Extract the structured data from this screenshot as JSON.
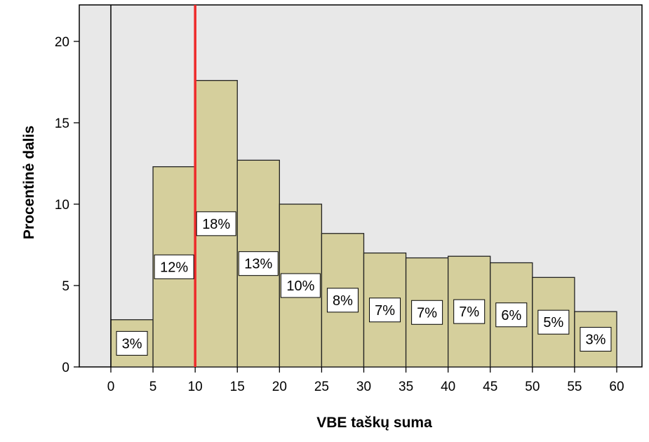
{
  "colors": {
    "plot_background": "#e8e8e8",
    "bar_fill": "#d5cf9c",
    "bar_stroke": "#222222",
    "reference_line": "#ee2b2b",
    "label_box": "#ffffff"
  },
  "chart_data": {
    "type": "bar",
    "title": "",
    "xlabel": "VBE taškų suma",
    "ylabel": "Procentinė dalis",
    "xlim": [
      0,
      60
    ],
    "ylim": [
      0,
      22
    ],
    "x_ticks": [
      "0",
      "5",
      "10",
      "15",
      "20",
      "25",
      "30",
      "35",
      "40",
      "45",
      "50",
      "55",
      "60"
    ],
    "y_ticks": [
      "0",
      "5",
      "10",
      "15",
      "20"
    ],
    "grid": false,
    "bin_width": 5,
    "bins": [
      {
        "start": 0,
        "end": 5,
        "value": 2.9,
        "label": "3%"
      },
      {
        "start": 5,
        "end": 10,
        "value": 12.3,
        "label": "12%"
      },
      {
        "start": 10,
        "end": 15,
        "value": 17.6,
        "label": "18%"
      },
      {
        "start": 15,
        "end": 20,
        "value": 12.7,
        "label": "13%"
      },
      {
        "start": 20,
        "end": 25,
        "value": 10.0,
        "label": "10%"
      },
      {
        "start": 25,
        "end": 30,
        "value": 8.2,
        "label": "8%"
      },
      {
        "start": 30,
        "end": 35,
        "value": 7.0,
        "label": "7%"
      },
      {
        "start": 35,
        "end": 40,
        "value": 6.7,
        "label": "7%"
      },
      {
        "start": 40,
        "end": 45,
        "value": 6.8,
        "label": "7%"
      },
      {
        "start": 45,
        "end": 50,
        "value": 6.4,
        "label": "6%"
      },
      {
        "start": 50,
        "end": 55,
        "value": 5.5,
        "label": "5%"
      },
      {
        "start": 55,
        "end": 60,
        "value": 3.4,
        "label": "3%"
      }
    ],
    "reference_line_x": 10
  }
}
